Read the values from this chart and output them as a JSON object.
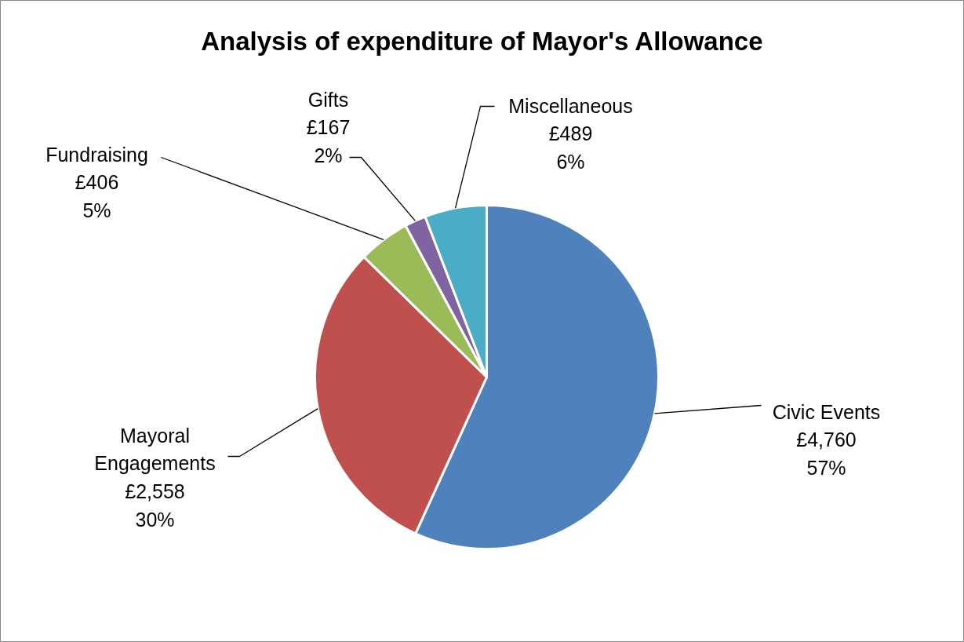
{
  "chart_data": {
    "type": "pie",
    "title": "Analysis of expenditure of Mayor's Allowance",
    "categories": [
      "Civic Events",
      "Mayoral Engagements",
      "Fundraising",
      "Gifts",
      "Miscellaneous"
    ],
    "values": [
      4760,
      2558,
      406,
      167,
      489
    ],
    "colors": [
      "#4f81bd",
      "#c0504d",
      "#9bbb59",
      "#8064a2",
      "#4bacc6"
    ],
    "value_labels": [
      "£4,760\n57%",
      "£2,558\n30%",
      "£406\n5%",
      "£167\n2%",
      "£489\n6%"
    ],
    "legend": false
  }
}
